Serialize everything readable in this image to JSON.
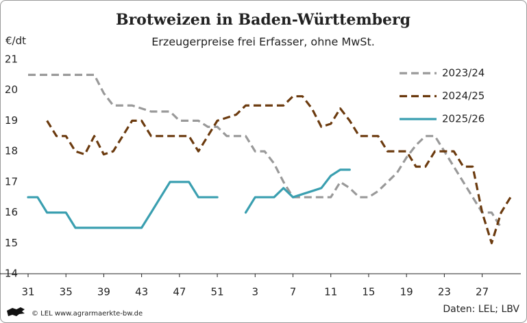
{
  "chart_data": {
    "type": "line",
    "title": "Brotweizen in Baden-Württemberg",
    "subtitle": "Erzeugerpreise frei Erfasser, ohne MwSt.",
    "y_label": "€/dt",
    "source": "Daten: LEL; LBV",
    "footer": "© LEL www.agrarmaerkte-bw.de",
    "categories": [
      "31",
      null,
      null,
      null,
      "35",
      null,
      null,
      null,
      "39",
      null,
      null,
      null,
      "43",
      null,
      null,
      null,
      "47",
      null,
      null,
      null,
      "51",
      null,
      null,
      null,
      "3",
      null,
      null,
      null,
      "7",
      null,
      null,
      null,
      "11",
      null,
      null,
      null,
      "15",
      null,
      null,
      null,
      "19",
      null,
      null,
      null,
      "23",
      null,
      null,
      null,
      "27",
      null,
      null,
      null
    ],
    "ylim": [
      14,
      21
    ],
    "yticks": [
      14,
      15,
      16,
      17,
      18,
      19,
      20,
      21
    ],
    "legend": "upper right",
    "series": [
      {
        "name": "2023/24",
        "color": "#999999",
        "line_style": "dashed",
        "values": [
          20.5,
          20.5,
          20.5,
          20.5,
          20.5,
          20.5,
          20.5,
          20.5,
          19.9,
          19.5,
          19.5,
          19.5,
          19.4,
          19.3,
          19.3,
          19.3,
          19.0,
          19.0,
          19.0,
          18.8,
          18.8,
          18.5,
          18.5,
          18.5,
          18.0,
          18.0,
          17.6,
          17.0,
          16.5,
          16.5,
          16.5,
          16.5,
          16.5,
          17.0,
          16.8,
          16.5,
          16.5,
          16.7,
          17.0,
          17.3,
          17.8,
          18.2,
          18.5,
          18.5,
          18.0,
          17.5,
          17.0,
          16.5,
          16.0,
          16.0,
          15.5,
          null
        ]
      },
      {
        "name": "2024/25",
        "color": "#6b3a0e",
        "line_style": "dashed",
        "values": [
          null,
          null,
          19.0,
          18.5,
          18.5,
          18.0,
          17.9,
          18.5,
          17.9,
          18.0,
          18.5,
          19.0,
          19.0,
          18.5,
          18.5,
          18.5,
          18.5,
          18.5,
          18.0,
          18.5,
          19.0,
          19.1,
          19.2,
          19.5,
          19.5,
          19.5,
          19.5,
          19.5,
          19.8,
          19.8,
          19.4,
          18.8,
          18.9,
          19.4,
          19.0,
          18.5,
          18.5,
          18.5,
          18.0,
          18.0,
          18.0,
          17.5,
          17.5,
          18.0,
          18.0,
          18.0,
          17.5,
          17.5,
          16.0,
          15.0,
          16.0,
          16.5
        ]
      },
      {
        "name": "2025/26",
        "color": "#3a9fb0",
        "line_style": "solid",
        "values": [
          16.5,
          16.5,
          16.0,
          16.0,
          16.0,
          15.5,
          15.5,
          15.5,
          15.5,
          15.5,
          15.5,
          15.5,
          15.5,
          16.0,
          16.5,
          17.0,
          17.0,
          17.0,
          16.5,
          16.5,
          16.5,
          null,
          null,
          16.0,
          16.5,
          16.5,
          16.5,
          16.8,
          16.5,
          16.6,
          16.7,
          16.8,
          17.2,
          17.4,
          17.4,
          null,
          null,
          null,
          null,
          null,
          null,
          null,
          null,
          null,
          null,
          null,
          null,
          null,
          null,
          null,
          null,
          null
        ]
      }
    ]
  }
}
